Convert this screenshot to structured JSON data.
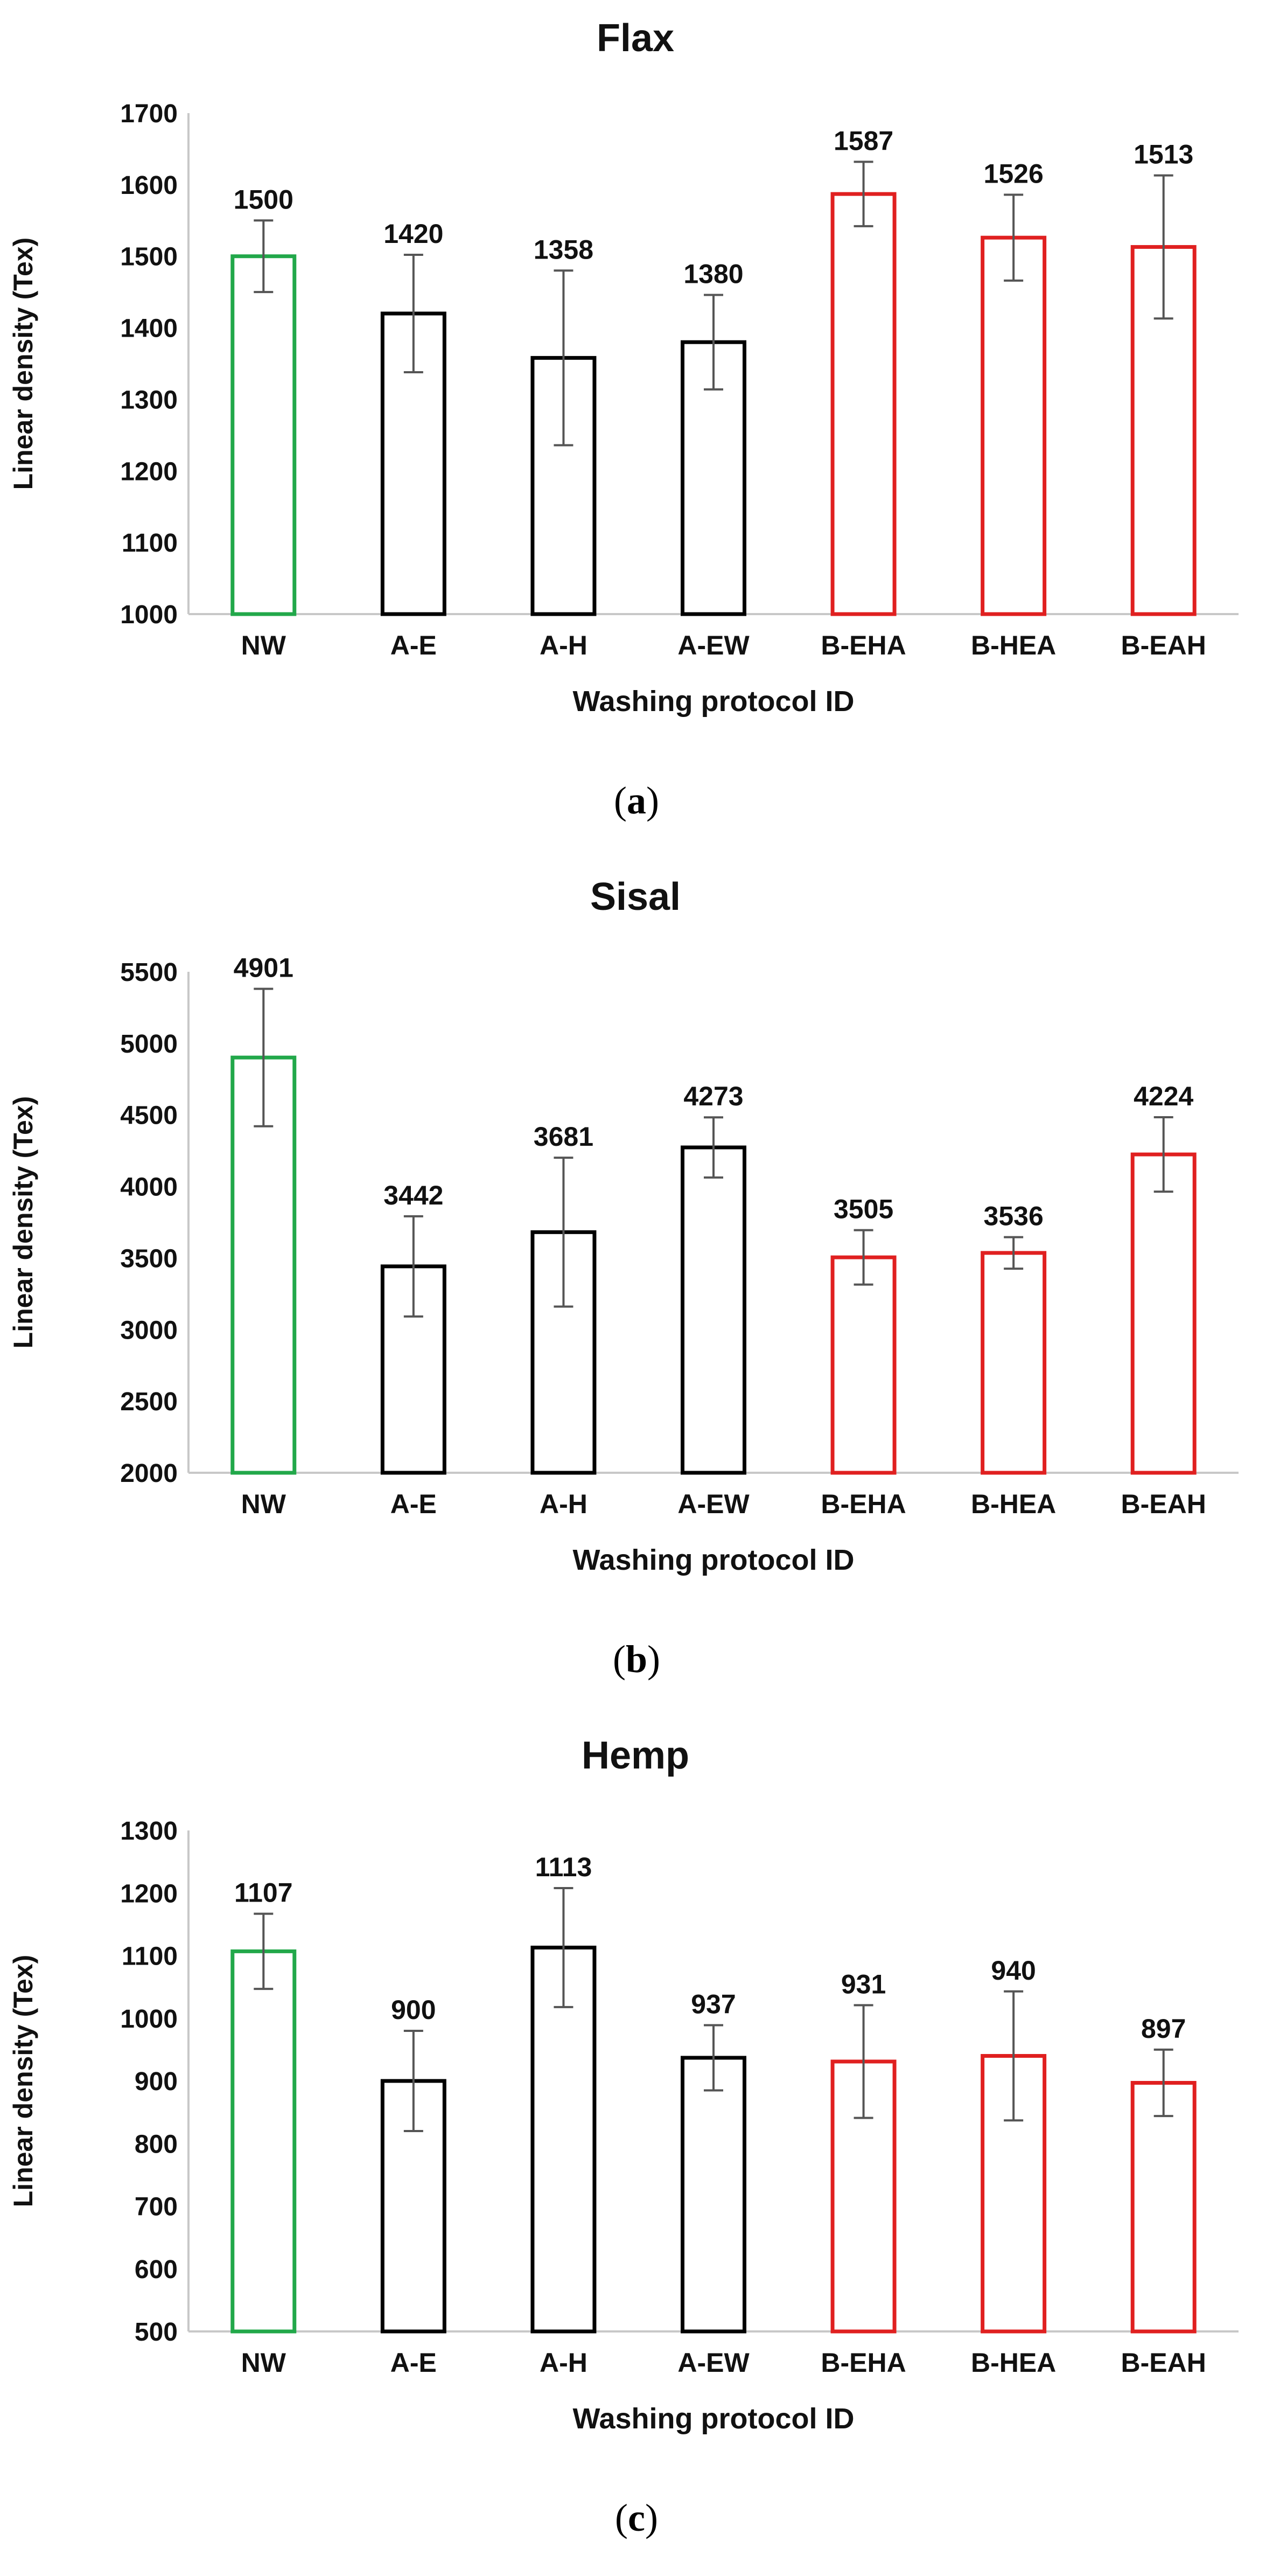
{
  "colors": {
    "control": "#22a84a",
    "protocol_a": "#000000",
    "protocol_b": "#e02020",
    "error_bar": "#555555",
    "axis": "#c8c8c8",
    "text": "#111111"
  },
  "captions": [
    {
      "open": "(",
      "letter": "a",
      "close": ")"
    },
    {
      "open": "(",
      "letter": "b",
      "close": ")"
    },
    {
      "open": "(",
      "letter": "c",
      "close": ")"
    }
  ],
  "chart_data": [
    {
      "type": "bar",
      "title": "Flax",
      "xlabel": "Washing protocol ID",
      "ylabel": "Linear density (Tex)",
      "categories": [
        "NW",
        "A-E",
        "A-H",
        "A-EW",
        "B-EHA",
        "B-HEA",
        "B-EAH"
      ],
      "values": [
        1500,
        1420,
        1358,
        1380,
        1587,
        1526,
        1513
      ],
      "errors": [
        50,
        82,
        122,
        66,
        45,
        60,
        100
      ],
      "groups": [
        "control",
        "protocol_a",
        "protocol_a",
        "protocol_a",
        "protocol_b",
        "protocol_b",
        "protocol_b"
      ],
      "ylim": [
        1000,
        1700
      ],
      "yticks": [
        1000,
        1100,
        1200,
        1300,
        1400,
        1500,
        1600,
        1700
      ]
    },
    {
      "type": "bar",
      "title": "Sisal",
      "xlabel": "Washing protocol ID",
      "ylabel": "Linear density (Tex)",
      "categories": [
        "NW",
        "A-E",
        "A-H",
        "A-EW",
        "B-EHA",
        "B-HEA",
        "B-EAH"
      ],
      "values": [
        4901,
        3442,
        3681,
        4273,
        3505,
        3536,
        4224
      ],
      "errors": [
        480,
        350,
        520,
        210,
        190,
        110,
        260
      ],
      "groups": [
        "control",
        "protocol_a",
        "protocol_a",
        "protocol_a",
        "protocol_b",
        "protocol_b",
        "protocol_b"
      ],
      "ylim": [
        2000,
        5500
      ],
      "yticks": [
        2000,
        2500,
        3000,
        3500,
        4000,
        4500,
        5000,
        5500
      ]
    },
    {
      "type": "bar",
      "title": "Hemp",
      "xlabel": "Washing protocol ID",
      "ylabel": "Linear density (Tex)",
      "categories": [
        "NW",
        "A-E",
        "A-H",
        "A-EW",
        "B-EHA",
        "B-HEA",
        "B-EAH"
      ],
      "values": [
        1107,
        900,
        1113,
        937,
        931,
        940,
        897
      ],
      "errors": [
        60,
        80,
        95,
        52,
        90,
        103,
        53
      ],
      "groups": [
        "control",
        "protocol_a",
        "protocol_a",
        "protocol_a",
        "protocol_b",
        "protocol_b",
        "protocol_b"
      ],
      "ylim": [
        500,
        1300
      ],
      "yticks": [
        500,
        600,
        700,
        800,
        900,
        1000,
        1100,
        1200,
        1300
      ]
    }
  ]
}
